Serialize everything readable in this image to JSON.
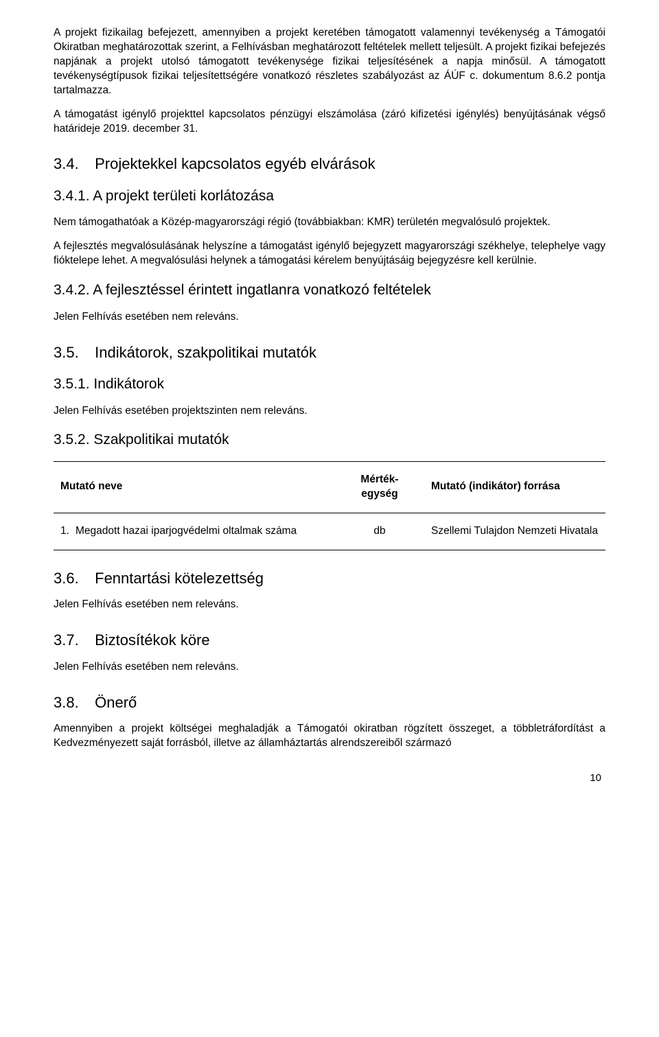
{
  "paragraphs": {
    "p1": "A projekt fizikailag befejezett, amennyiben a projekt keretében támogatott valamennyi tevékenység a Támogatói Okiratban meghatározottak szerint, a Felhívásban meghatározott feltételek mellett teljesült. A projekt fizikai befejezés napjának a projekt utolsó támogatott tevékenysége fizikai teljesítésének a napja minősül. A támogatott tevékenységtípusok fizikai teljesítettségére vonatkozó részletes szabályozást az ÁÚF c. dokumentum 8.6.2 pontja tartalmazza.",
    "p2": "A támogatást igénylő projekttel kapcsolatos pénzügyi elszámolása (záró kifizetési igénylés) benyújtásának végső határideje 2019. december 31.",
    "p341a": "Nem támogathatóak a Közép-magyarországi régió (továbbiakban: KMR) területén megvalósuló projektek.",
    "p341b": "A fejlesztés megvalósulásának helyszíne a támogatást igénylő bejegyzett magyarországi székhelye, telephelye vagy fióktelepe lehet. A megvalósulási helynek a támogatási kérelem benyújtásáig bejegyzésre kell kerülnie.",
    "p342": "Jelen Felhívás esetében nem releváns.",
    "p351": "Jelen Felhívás esetében projektszinten nem releváns.",
    "p36": "Jelen Felhívás esetében nem releváns.",
    "p37": "Jelen Felhívás esetében nem releváns.",
    "p38": "Amennyiben a projekt költségei meghaladják a Támogatói okiratban rögzített összeget, a többletráfordítást a Kedvezményezett saját forrásból, illetve az államháztartás alrendszereiből származó"
  },
  "headings": {
    "h34_num": "3.4.",
    "h34_txt": "Projektekkel kapcsolatos egyéb elvárások",
    "h341": "3.4.1. A projekt területi korlátozása",
    "h342": "3.4.2. A fejlesztéssel érintett ingatlanra vonatkozó feltételek",
    "h35_num": "3.5.",
    "h35_txt": "Indikátorok, szakpolitikai mutatók",
    "h351": "3.5.1. Indikátorok",
    "h352": "3.5.2. Szakpolitikai mutatók",
    "h36_num": "3.6.",
    "h36_txt": "Fenntartási kötelezettség",
    "h37_num": "3.7.",
    "h37_txt": "Biztosítékok köre",
    "h38_num": "3.8.",
    "h38_txt": "Önerő"
  },
  "table": {
    "head_name": "Mutató neve",
    "head_unit": "Mérték-\negység",
    "head_unit_l1": "Mérték-",
    "head_unit_l2": "egység",
    "head_source": "Mutató (indikátor) forrása",
    "row1_marker": "1.",
    "row1_name": "Megadott hazai iparjogvédelmi oltalmak száma",
    "row1_unit": "db",
    "row1_source": "Szellemi Tulajdon Nemzeti Hivatala"
  },
  "page_number": "10"
}
